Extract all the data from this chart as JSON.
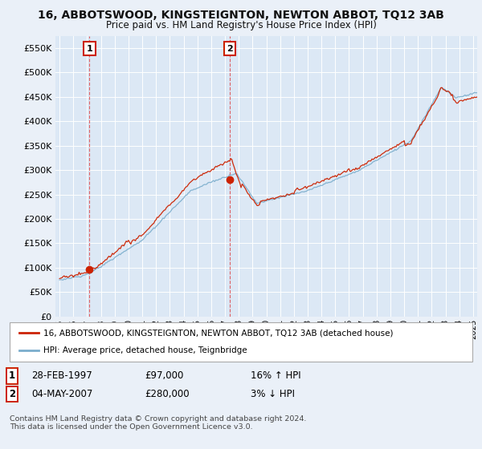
{
  "title": "16, ABBOTSWOOD, KINGSTEIGNTON, NEWTON ABBOT, TQ12 3AB",
  "subtitle": "Price paid vs. HM Land Registry's House Price Index (HPI)",
  "background_color": "#eaf0f8",
  "plot_bg_color": "#dce8f5",
  "legend_label_red": "16, ABBOTSWOOD, KINGSTEIGNTON, NEWTON ABBOT, TQ12 3AB (detached house)",
  "legend_label_blue": "HPI: Average price, detached house, Teignbridge",
  "footer": "Contains HM Land Registry data © Crown copyright and database right 2024.\nThis data is licensed under the Open Government Licence v3.0.",
  "transactions": [
    {
      "num": 1,
      "date": "28-FEB-1997",
      "price": 97000,
      "year": 1997.17,
      "hpi_pct": "16%",
      "hpi_dir": "↑"
    },
    {
      "num": 2,
      "date": "04-MAY-2007",
      "price": 280000,
      "year": 2007.35,
      "hpi_pct": "3%",
      "hpi_dir": "↓"
    }
  ],
  "ylim": [
    0,
    575000
  ],
  "yticks": [
    0,
    50000,
    100000,
    150000,
    200000,
    250000,
    300000,
    350000,
    400000,
    450000,
    500000,
    550000
  ],
  "xlim": [
    1994.7,
    2025.3
  ],
  "red_color": "#cc2200",
  "blue_color": "#7aadcc",
  "dashed_color": "#dd3333",
  "grid_color": "#ffffff",
  "tx1_row": "28-FEB-1997     £97,000     16% ↑ HPI",
  "tx2_row": "04-MAY-2007   £280,000     3% ↓ HPI"
}
